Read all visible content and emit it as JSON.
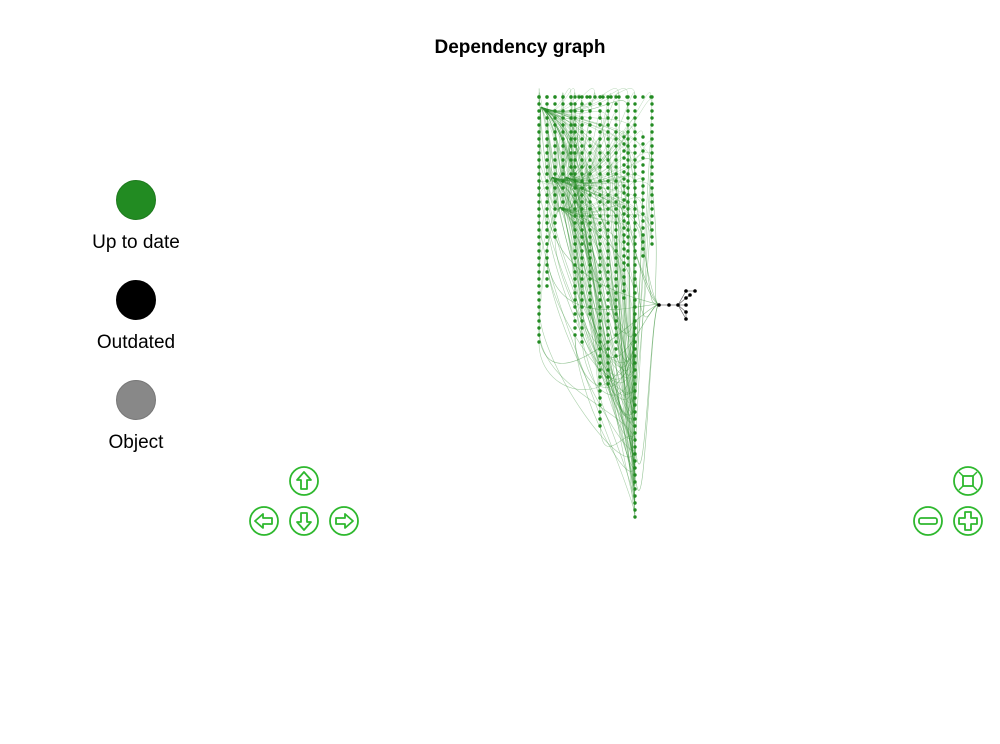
{
  "title": "Dependency graph",
  "legend": [
    {
      "label": "Up to date",
      "color": "#228b22",
      "border": "#1e7a1e"
    },
    {
      "label": "Outdated",
      "color": "#000000",
      "border": "#000000"
    },
    {
      "label": "Object",
      "color": "#888888",
      "border": "#777777"
    }
  ],
  "colors": {
    "up_to_date": "#228b22",
    "outdated": "#000000",
    "edge_up_to_date": "#2e8b2e",
    "edge_outdated": "#555555",
    "nav_button": "#2eb82e"
  },
  "navigation": {
    "up": "arrow-up-icon",
    "down": "arrow-down-icon",
    "left": "arrow-left-icon",
    "right": "arrow-right-icon",
    "fit": "fit-to-screen-icon",
    "zoom_in": "zoom-in-icon",
    "zoom_out": "zoom-out-icon"
  }
}
